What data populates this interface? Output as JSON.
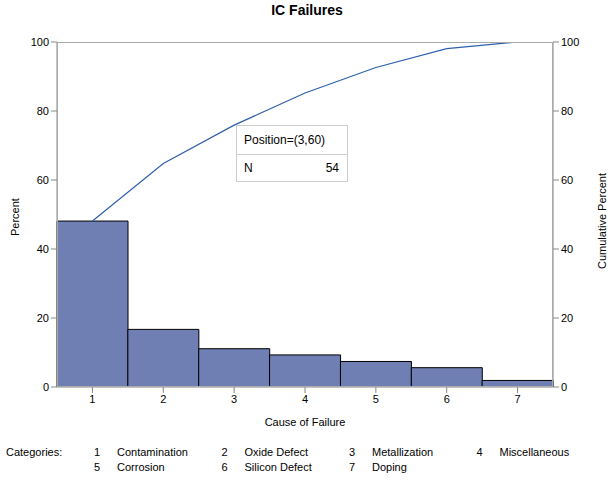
{
  "chart_data": {
    "type": "pareto",
    "title": "IC Failures",
    "x_label": "Cause of Failure",
    "categories": [
      "1",
      "2",
      "3",
      "4",
      "5",
      "6",
      "7"
    ],
    "series": [
      {
        "name": "Percent",
        "type": "bar",
        "color": "#6f7eb3",
        "values": [
          48.1,
          16.7,
          11.1,
          9.3,
          7.4,
          5.6,
          1.9
        ]
      },
      {
        "name": "Cumulative Percent",
        "type": "line",
        "axis": "y2",
        "color": "#2f5fae",
        "values": [
          48.1,
          64.8,
          75.9,
          85.2,
          92.6,
          98.1,
          100
        ]
      }
    ],
    "ylim": [
      0,
      100
    ],
    "yticks": [
      0,
      20,
      40,
      60,
      80,
      100
    ],
    "y2lim": [
      0,
      100
    ],
    "y2ticks": [
      0,
      20,
      40,
      60,
      80,
      100
    ],
    "grid": false,
    "category_legend": {
      "title": "Categories:",
      "names": [
        "Contamination",
        "Oxide Defect",
        "Metallization",
        "Miscellaneous",
        "Corrosion",
        "Silicon Defect",
        "Doping"
      ]
    },
    "inset": {
      "title": "Position=(3,60)",
      "label": "N",
      "value": 54
    }
  }
}
